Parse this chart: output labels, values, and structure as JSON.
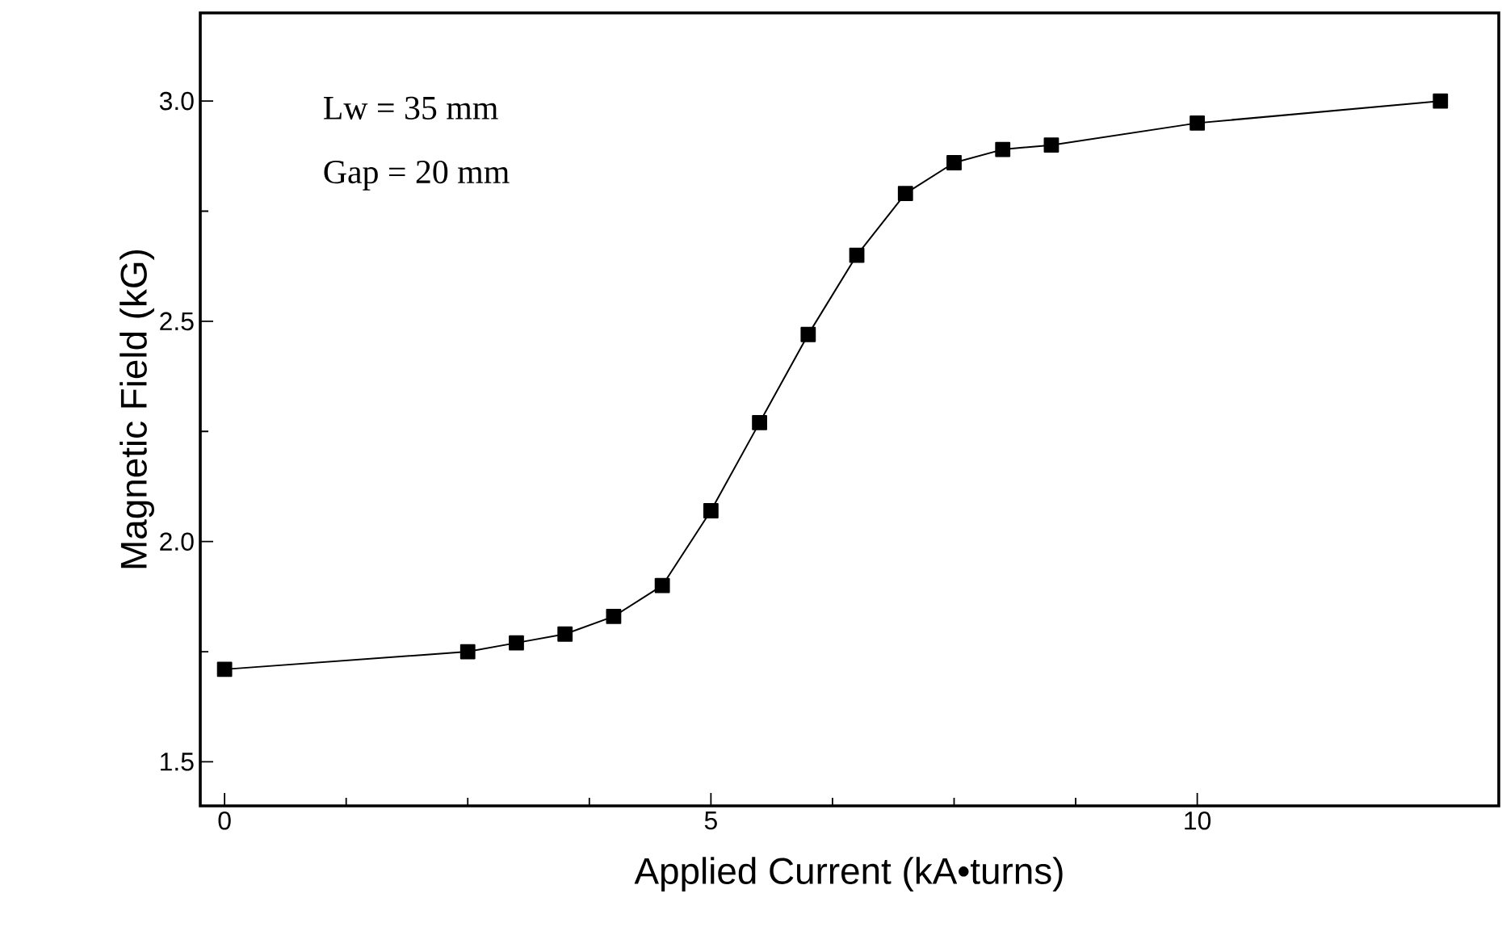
{
  "chart_data": {
    "type": "line",
    "xlabel": "Applied Current (kA•turns)",
    "ylabel": "Magnetic Field (kG)",
    "annotations": [
      "Lw = 35 mm",
      "Gap = 20 mm"
    ],
    "x": [
      0,
      2.5,
      3,
      3.5,
      4,
      4.5,
      5,
      5.5,
      6,
      6.5,
      7,
      7.5,
      8,
      8.5,
      10,
      12.5
    ],
    "series": [
      {
        "color": "#000000",
        "values": [
          1.71,
          1.75,
          1.77,
          1.79,
          1.83,
          1.9,
          2.07,
          2.27,
          2.47,
          2.65,
          2.79,
          2.86,
          2.89,
          2.9,
          2.95,
          3.0
        ]
      }
    ],
    "xlim": [
      -0.25,
      13.1
    ],
    "ylim": [
      1.4,
      3.2
    ],
    "xticks": [
      0,
      5,
      10
    ],
    "yticks": [
      1.5,
      {
        "value": 2,
        "label": "2.0"
      },
      2.5,
      {
        "value": 3,
        "label": "3.0"
      }
    ],
    "marker": "square",
    "line_style": "solid"
  }
}
